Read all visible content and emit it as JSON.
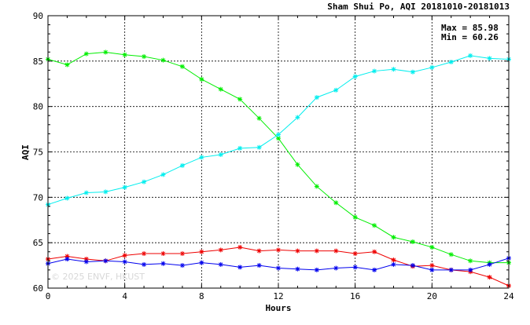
{
  "chart_data": {
    "type": "line",
    "title": "Sham Shui Po, AQI 20181010-20181013",
    "xlabel": "Hours",
    "ylabel": "AQI",
    "xlim": [
      0,
      24
    ],
    "ylim": [
      60,
      90
    ],
    "xticks": [
      0,
      4,
      8,
      12,
      16,
      20,
      24
    ],
    "yticks": [
      60,
      65,
      70,
      75,
      80,
      85,
      90
    ],
    "grid": true,
    "marker": "asterisk",
    "stats": {
      "max_text": "Max = 85.98",
      "min_text": "Min = 60.26"
    },
    "watermark": "© 2025 ENVF, HKUST",
    "x": [
      0,
      1,
      2,
      3,
      4,
      5,
      6,
      7,
      8,
      9,
      10,
      11,
      12,
      13,
      14,
      15,
      16,
      17,
      18,
      19,
      20,
      21,
      22,
      23,
      24
    ],
    "series": [
      {
        "color": "#00ee00",
        "values": [
          85.2,
          84.6,
          85.8,
          85.98,
          85.7,
          85.5,
          85.1,
          84.4,
          83.0,
          81.9,
          80.8,
          78.7,
          76.5,
          73.6,
          71.2,
          69.4,
          67.8,
          66.9,
          65.6,
          65.1,
          64.5,
          63.7,
          63.0,
          62.8,
          62.8
        ]
      },
      {
        "color": "#00eeee",
        "values": [
          69.2,
          69.9,
          70.5,
          70.6,
          71.1,
          71.7,
          72.5,
          73.5,
          74.4,
          74.7,
          75.4,
          75.5,
          76.9,
          78.8,
          81.0,
          81.8,
          83.3,
          83.9,
          84.1,
          83.8,
          84.3,
          84.9,
          85.6,
          85.3,
          85.2
        ]
      },
      {
        "color": "#ee0000",
        "values": [
          63.2,
          63.5,
          63.2,
          63.0,
          63.6,
          63.8,
          63.8,
          63.8,
          64.0,
          64.2,
          64.5,
          64.1,
          64.2,
          64.1,
          64.1,
          64.1,
          63.8,
          64.0,
          63.1,
          62.4,
          62.5,
          62.0,
          61.8,
          61.2,
          60.26
        ]
      },
      {
        "color": "#0000ee",
        "values": [
          62.7,
          63.2,
          62.9,
          63.0,
          62.9,
          62.6,
          62.7,
          62.5,
          62.8,
          62.6,
          62.3,
          62.5,
          62.2,
          62.1,
          62.0,
          62.2,
          62.3,
          62.0,
          62.6,
          62.5,
          62.0,
          62.0,
          62.0,
          62.6,
          63.3
        ]
      }
    ]
  }
}
